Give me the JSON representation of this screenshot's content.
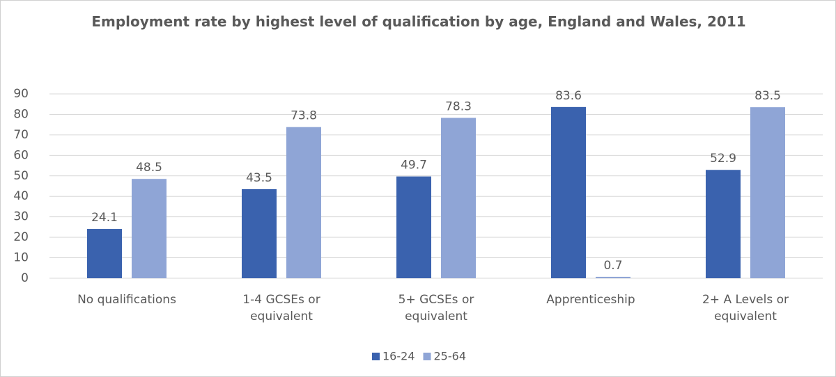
{
  "chart_data": {
    "type": "bar",
    "title": "Employment rate by highest level of qualification by age, England and Wales, 2011",
    "categories": [
      "No qualifications",
      "1-4 GCSEs or equivalent",
      "5+ GCSEs or equivalent",
      "Apprenticeship",
      "2+ A Levels or equivalent"
    ],
    "series": [
      {
        "name": "16-24",
        "color": "#3a62ae",
        "values": [
          24.1,
          43.5,
          49.7,
          83.6,
          52.9
        ]
      },
      {
        "name": "25-64",
        "color": "#8fa5d6",
        "values": [
          48.5,
          73.8,
          78.3,
          0.7,
          83.5
        ]
      }
    ],
    "ylim": [
      0,
      90
    ],
    "yticks": [
      0,
      10,
      20,
      30,
      40,
      50,
      60,
      70,
      80,
      90
    ],
    "grid": true,
    "legend": "bottom"
  }
}
